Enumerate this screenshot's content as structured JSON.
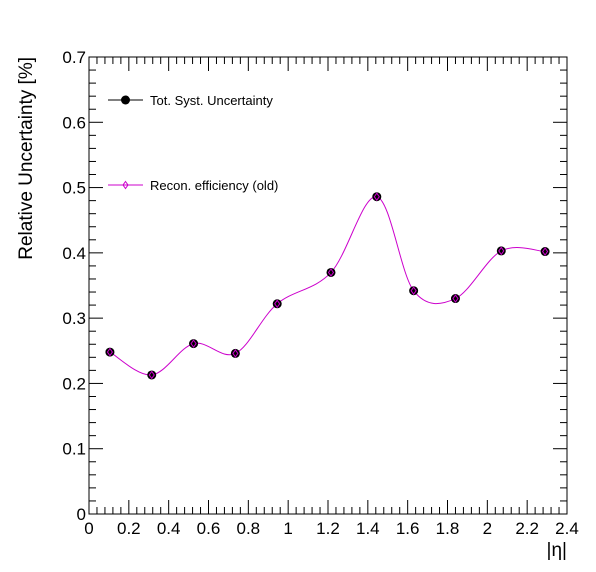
{
  "chart_data": {
    "type": "line",
    "title": "",
    "xlabel": "|η|",
    "ylabel": "Relative Uncertainty [%]",
    "xlim": [
      0,
      2.4
    ],
    "ylim": [
      0,
      0.7
    ],
    "x_ticks": [
      "0",
      "0.2",
      "0.4",
      "0.6",
      "0.8",
      "1",
      "1.2",
      "1.4",
      "1.6",
      "1.8",
      "2",
      "2.2",
      "2.4"
    ],
    "y_ticks": [
      "0",
      "0.1",
      "0.2",
      "0.3",
      "0.4",
      "0.5",
      "0.6",
      "0.7"
    ],
    "grid": false,
    "legend_position": "top-left",
    "series": [
      {
        "name": "Tot. Syst. Uncertainty",
        "color": "#000000",
        "marker": "filled-circle",
        "x": [
          0.105,
          0.315,
          0.525,
          0.735,
          0.945,
          1.215,
          1.445,
          1.63,
          1.84,
          2.07,
          2.29
        ],
        "y": [
          0.248,
          0.213,
          0.261,
          0.246,
          0.322,
          0.37,
          0.486,
          0.342,
          0.33,
          0.403,
          0.402
        ]
      },
      {
        "name": "Recon. efficiency (old)",
        "color": "#cc00cc",
        "marker": "open-diamond",
        "x": [
          0.105,
          0.315,
          0.525,
          0.735,
          0.945,
          1.215,
          1.445,
          1.63,
          1.84,
          2.07,
          2.29
        ],
        "y": [
          0.248,
          0.213,
          0.261,
          0.246,
          0.322,
          0.37,
          0.486,
          0.342,
          0.33,
          0.403,
          0.402
        ]
      }
    ]
  }
}
